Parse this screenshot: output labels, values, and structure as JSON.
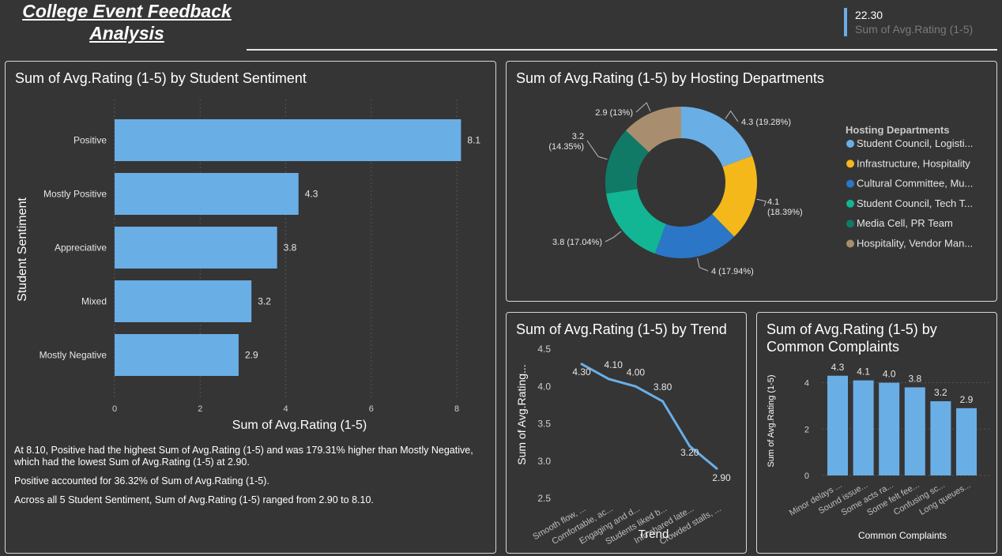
{
  "header": {
    "title": "College Event Feedback Analysis",
    "kpi_value": "22.30",
    "kpi_label": "Sum of Avg.Rating (1-5)"
  },
  "sentiment_panel": {
    "title": "Sum of Avg.Rating (1-5) by Student Sentiment",
    "insights": [
      "At 8.10, Positive had the highest Sum of Avg.Rating (1-5) and was 179.31% higher than Mostly Negative, which had the lowest Sum of Avg.Rating (1-5) at 2.90.",
      "Positive accounted for 36.32% of Sum of Avg.Rating (1-5).",
      "Across all 5 Student Sentiment, Sum of Avg.Rating (1-5) ranged from 2.90 to 8.10."
    ]
  },
  "departments_panel": {
    "title": "Sum of Avg.Rating (1-5) by Hosting Departments"
  },
  "trend_panel": {
    "title": "Sum of Avg.Rating (1-5) by Trend"
  },
  "complaints_panel": {
    "title_line1": "Sum of Avg.Rating (1-5) by",
    "title_line2": "Common Complaints"
  },
  "chart_data": [
    {
      "type": "bar",
      "orientation": "horizontal",
      "categories": [
        "Positive",
        "Mostly Positive",
        "Appreciative",
        "Mixed",
        "Mostly Negative"
      ],
      "values": [
        8.1,
        4.3,
        3.8,
        3.2,
        2.9
      ],
      "value_labels": [
        "8.1",
        "4.3",
        "3.8",
        "3.2",
        "2.9"
      ],
      "xlabel": "Sum of Avg.Rating (1-5)",
      "ylabel": "Student Sentiment",
      "xlim": [
        0,
        8.4
      ],
      "xticks": [
        0,
        2,
        4,
        6,
        8
      ],
      "color": "#6aaee6",
      "grid": true
    },
    {
      "type": "pie",
      "donut": true,
      "legend_title": "Hosting Departments",
      "legend_position": "right",
      "slices": [
        {
          "label": "Student Council, Logisti...",
          "value": 4.3,
          "percent": "19.28%",
          "color": "#6aaee6",
          "data_label": "4.3 (19.28%)"
        },
        {
          "label": "Infrastructure, Hospitality",
          "value": 4.1,
          "percent": "18.39%",
          "color": "#f5b81b",
          "data_label_line1": "4.1",
          "data_label_line2": "(18.39%)"
        },
        {
          "label": "Cultural Committee, Mu...",
          "value": 4.0,
          "percent": "17.94%",
          "color": "#2b76c7",
          "data_label": "4 (17.94%)"
        },
        {
          "label": "Student Council, Tech T...",
          "value": 3.8,
          "percent": "17.04%",
          "color": "#12b594",
          "data_label": "3.8 (17.04%)"
        },
        {
          "label": "Media Cell, PR Team",
          "value": 3.2,
          "percent": "14.35%",
          "color": "#117a66",
          "data_label_line1": "3.2",
          "data_label_line2": "(14.35%)"
        },
        {
          "label": "Hospitality, Vendor Man...",
          "value": 2.9,
          "percent": "13%",
          "color": "#a88e6e",
          "data_label": "2.9 (13%)"
        }
      ]
    },
    {
      "type": "line",
      "categories": [
        "Smooth flow, ...",
        "Comfortable, ac...",
        "Engaging and d...",
        "Students liked b...",
        "Info shared late...",
        "Crowded stalls, ..."
      ],
      "values": [
        4.3,
        4.1,
        4.0,
        3.8,
        3.2,
        2.9
      ],
      "value_labels": [
        "4.30",
        "4.10",
        "4.00",
        "3.80",
        "3.20",
        "2.90"
      ],
      "xlabel": "Trend",
      "ylabel": "Sum of Avg.Rating...",
      "ylim": [
        2.5,
        4.5
      ],
      "yticks": [
        "2.5",
        "3.0",
        "3.5",
        "4.0",
        "4.5"
      ],
      "color": "#6aaee6"
    },
    {
      "type": "bar",
      "orientation": "vertical",
      "categories": [
        "Minor delays ...",
        "Sound issue...",
        "Some acts ra...",
        "Some felt fee...",
        "Confusing sc...",
        "Long queues..."
      ],
      "values": [
        4.3,
        4.1,
        4.0,
        3.8,
        3.2,
        2.9
      ],
      "value_labels": [
        "4.3",
        "4.1",
        "4.0",
        "3.8",
        "3.2",
        "2.9"
      ],
      "xlabel": "Common Complaints",
      "ylabel": "Sum of Avg.Rating (1-5)",
      "ylim": [
        0,
        4.7
      ],
      "yticks": [
        0,
        2,
        4
      ],
      "color": "#6aaee6"
    }
  ]
}
